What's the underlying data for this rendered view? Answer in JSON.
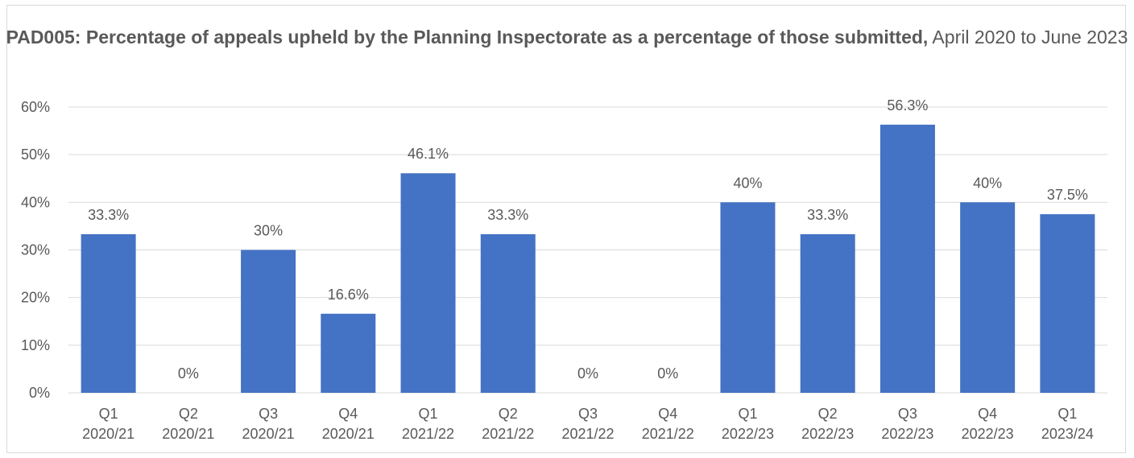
{
  "chart_data": {
    "type": "bar",
    "title_bold": "PAD005: Percentage of appeals upheld by the Planning Inspectorate as a percentage of those submitted,",
    "title_normal": " April 2020 to June 2023",
    "categories": [
      [
        "Q1",
        "2020/21"
      ],
      [
        "Q2",
        "2020/21"
      ],
      [
        "Q3",
        "2020/21"
      ],
      [
        "Q4",
        "2020/21"
      ],
      [
        "Q1",
        "2021/22"
      ],
      [
        "Q2",
        "2021/22"
      ],
      [
        "Q3",
        "2021/22"
      ],
      [
        "Q4",
        "2021/22"
      ],
      [
        "Q1",
        "2022/23"
      ],
      [
        "Q2",
        "2022/23"
      ],
      [
        "Q3",
        "2022/23"
      ],
      [
        "Q4",
        "2022/23"
      ],
      [
        "Q1",
        "2023/24"
      ]
    ],
    "values": [
      33.3,
      0,
      30,
      16.6,
      46.1,
      33.3,
      0,
      0,
      40,
      33.3,
      56.3,
      40,
      37.5
    ],
    "data_labels": [
      "33.3%",
      "0%",
      "30%",
      "16.6%",
      "46.1%",
      "33.3%",
      "0%",
      "0%",
      "40%",
      "33.3%",
      "56.3%",
      "40%",
      "37.5%"
    ],
    "ylim": [
      0,
      60
    ],
    "y_ticks": [
      0,
      10,
      20,
      30,
      40,
      50,
      60
    ],
    "y_tick_labels": [
      "0%",
      "10%",
      "20%",
      "30%",
      "40%",
      "50%",
      "60%"
    ],
    "grid": true,
    "legend": "none",
    "bar_color": "#4472c4",
    "grid_color": "#d9d9d9",
    "text_color": "#595959"
  }
}
